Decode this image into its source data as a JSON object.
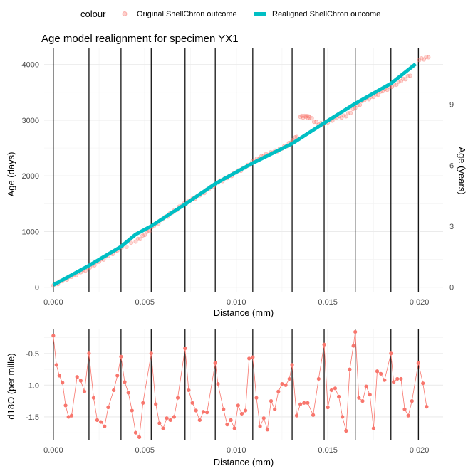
{
  "chart_data": [
    {
      "type": "scatter+line",
      "title": "Age model realignment for specimen YX1",
      "xlabel": "Distance (mm)",
      "ylabel": "Age (days)",
      "y2label": "Age (years)",
      "xlim": [
        -0.0005,
        0.0213
      ],
      "ylim": [
        -80,
        4290
      ],
      "x_ticks": [
        0.0,
        0.005,
        0.01,
        0.015,
        0.02
      ],
      "x_tick_labels": [
        "0.000",
        "0.005",
        "0.010",
        "0.015",
        "0.020"
      ],
      "y_ticks": [
        0,
        1000,
        2000,
        3000,
        4000
      ],
      "y_tick_labels": [
        "0",
        "1000",
        "2000",
        "3000",
        "4000"
      ],
      "y2_ticks": [
        0,
        1095,
        2190,
        3285
      ],
      "y2_tick_labels": [
        "0",
        "3",
        "6",
        "9"
      ],
      "legend_title": "colour",
      "legend_position": "top",
      "year_boundaries": [
        0.0,
        0.00195,
        0.0037,
        0.00535,
        0.0072,
        0.00885,
        0.0109,
        0.01305,
        0.0148,
        0.0165,
        0.01845,
        0.01995
      ],
      "series": [
        {
          "name": "Original ShellChron outcome",
          "mark": "point",
          "color": "#F8766D",
          "points": [
            [
              0.0,
              30
            ],
            [
              0.0005,
              110
            ],
            [
              0.001,
              190
            ],
            [
              0.0015,
              270
            ],
            [
              0.002,
              355
            ],
            [
              0.0025,
              460
            ],
            [
              0.003,
              560
            ],
            [
              0.0035,
              660
            ],
            [
              0.0045,
              820
            ],
            [
              0.005,
              940
            ],
            [
              0.0055,
              1100
            ],
            [
              0.006,
              1220
            ],
            [
              0.0065,
              1340
            ],
            [
              0.007,
              1460
            ],
            [
              0.0075,
              1560
            ],
            [
              0.008,
              1650
            ],
            [
              0.0085,
              1760
            ],
            [
              0.009,
              1880
            ],
            [
              0.0095,
              1960
            ],
            [
              0.01,
              2060
            ],
            [
              0.0105,
              2150
            ],
            [
              0.011,
              2270
            ],
            [
              0.0115,
              2360
            ],
            [
              0.012,
              2420
            ],
            [
              0.0125,
              2490
            ],
            [
              0.013,
              2600
            ],
            [
              0.0133,
              2700
            ],
            [
              0.0135,
              3060
            ],
            [
              0.0138,
              3060
            ],
            [
              0.014,
              3050
            ],
            [
              0.0145,
              2920
            ],
            [
              0.015,
              2960
            ],
            [
              0.0155,
              3050
            ],
            [
              0.016,
              3070
            ],
            [
              0.0165,
              3220
            ],
            [
              0.017,
              3360
            ],
            [
              0.0175,
              3420
            ],
            [
              0.018,
              3520
            ],
            [
              0.0185,
              3600
            ],
            [
              0.019,
              3700
            ],
            [
              0.0195,
              3800
            ],
            [
              0.02,
              4080
            ],
            [
              0.0205,
              4130
            ]
          ]
        },
        {
          "name": "Realigned ShellChron outcome",
          "mark": "line",
          "color": "#00BFC4",
          "points": [
            [
              0.0,
              40
            ],
            [
              0.00195,
              390
            ],
            [
              0.0037,
              730
            ],
            [
              0.0045,
              950
            ],
            [
              0.00535,
              1100
            ],
            [
              0.0072,
              1490
            ],
            [
              0.00885,
              1860
            ],
            [
              0.0109,
              2230
            ],
            [
              0.01305,
              2580
            ],
            [
              0.0148,
              2950
            ],
            [
              0.0165,
              3300
            ],
            [
              0.01845,
              3660
            ],
            [
              0.0198,
              4010
            ]
          ]
        }
      ]
    },
    {
      "type": "line",
      "title": "",
      "xlabel": "Distance (mm)",
      "ylabel": "d18O (per mille)",
      "xlim": [
        -0.0005,
        0.0213
      ],
      "ylim": [
        -1.86,
        -0.11
      ],
      "x_ticks": [
        0.0,
        0.005,
        0.01,
        0.015,
        0.02
      ],
      "x_tick_labels": [
        "0.000",
        "0.005",
        "0.010",
        "0.015",
        "0.020"
      ],
      "y_ticks": [
        -1.5,
        -1.0,
        -0.5
      ],
      "y_tick_labels": [
        "-1.5",
        "-1.0",
        "-0.5"
      ],
      "year_boundaries": [
        0.0,
        0.00195,
        0.0037,
        0.00535,
        0.0072,
        0.00885,
        0.0109,
        0.01305,
        0.0148,
        0.0165,
        0.01845,
        0.01995
      ],
      "series": [
        {
          "name": "d18O",
          "color": "#F8766D",
          "values": [
            [
              0.0,
              -0.22
            ],
            [
              0.00017,
              -0.68
            ],
            [
              0.00033,
              -0.85
            ],
            [
              0.0005,
              -0.96
            ],
            [
              0.00067,
              -1.32
            ],
            [
              0.00083,
              -1.5
            ],
            [
              0.001,
              -1.48
            ],
            [
              0.0013,
              -0.87
            ],
            [
              0.0015,
              -0.93
            ],
            [
              0.0017,
              -1.1
            ],
            [
              0.00195,
              -0.5
            ],
            [
              0.0022,
              -1.2
            ],
            [
              0.0024,
              -1.55
            ],
            [
              0.0026,
              -1.58
            ],
            [
              0.0028,
              -1.65
            ],
            [
              0.003,
              -1.35
            ],
            [
              0.0033,
              -1.08
            ],
            [
              0.0035,
              -0.85
            ],
            [
              0.0037,
              -0.55
            ],
            [
              0.0039,
              -0.95
            ],
            [
              0.0041,
              -1.12
            ],
            [
              0.0043,
              -1.4
            ],
            [
              0.0045,
              -1.75
            ],
            [
              0.0047,
              -1.82
            ],
            [
              0.0049,
              -1.28
            ],
            [
              0.00535,
              -0.5
            ],
            [
              0.0056,
              -1.3
            ],
            [
              0.0058,
              -1.6
            ],
            [
              0.006,
              -1.68
            ],
            [
              0.0062,
              -1.52
            ],
            [
              0.0064,
              -1.55
            ],
            [
              0.0066,
              -1.5
            ],
            [
              0.0068,
              -1.2
            ],
            [
              0.0072,
              -0.42
            ],
            [
              0.0074,
              -1.08
            ],
            [
              0.0076,
              -1.28
            ],
            [
              0.0078,
              -1.4
            ],
            [
              0.008,
              -1.55
            ],
            [
              0.0082,
              -1.42
            ],
            [
              0.0084,
              -1.43
            ],
            [
              0.00885,
              -0.65
            ],
            [
              0.009,
              -0.98
            ],
            [
              0.0093,
              -1.38
            ],
            [
              0.0095,
              -1.62
            ],
            [
              0.0097,
              -1.55
            ],
            [
              0.0099,
              -1.68
            ],
            [
              0.0101,
              -1.32
            ],
            [
              0.0103,
              -1.45
            ],
            [
              0.0105,
              -1.4
            ],
            [
              0.0107,
              -0.58
            ],
            [
              0.0109,
              -0.56
            ],
            [
              0.0111,
              -1.2
            ],
            [
              0.0113,
              -1.65
            ],
            [
              0.0115,
              -1.52
            ],
            [
              0.0117,
              -1.7
            ],
            [
              0.0119,
              -1.25
            ],
            [
              0.0121,
              -1.38
            ],
            [
              0.0123,
              -1.1
            ],
            [
              0.0125,
              -0.98
            ],
            [
              0.0127,
              -1.0
            ],
            [
              0.0129,
              -0.9
            ],
            [
              0.01305,
              -0.68
            ],
            [
              0.0133,
              -1.48
            ],
            [
              0.0135,
              -1.3
            ],
            [
              0.0137,
              -1.28
            ],
            [
              0.0139,
              -1.28
            ],
            [
              0.0142,
              -1.47
            ],
            [
              0.0145,
              -0.9
            ],
            [
              0.0148,
              -0.36
            ],
            [
              0.015,
              -1.35
            ],
            [
              0.0152,
              -1.08
            ],
            [
              0.0154,
              -1.05
            ],
            [
              0.0156,
              -1.18
            ],
            [
              0.0158,
              -1.5
            ],
            [
              0.016,
              -1.72
            ],
            [
              0.0162,
              -0.75
            ],
            [
              0.0164,
              -0.38
            ],
            [
              0.0165,
              -0.16
            ],
            [
              0.0167,
              -1.2
            ],
            [
              0.0169,
              -1.25
            ],
            [
              0.0171,
              -1.02
            ],
            [
              0.0173,
              -1.15
            ],
            [
              0.0175,
              -1.68
            ],
            [
              0.0177,
              -0.78
            ],
            [
              0.0179,
              -0.82
            ],
            [
              0.0181,
              -0.92
            ],
            [
              0.01845,
              -0.5
            ],
            [
              0.0186,
              -0.95
            ],
            [
              0.0188,
              -0.9
            ],
            [
              0.019,
              -0.9
            ],
            [
              0.0192,
              -1.38
            ],
            [
              0.0194,
              -1.48
            ],
            [
              0.0196,
              -1.25
            ],
            [
              0.01995,
              -0.65
            ],
            [
              0.0202,
              -0.97
            ],
            [
              0.0204,
              -1.34
            ]
          ]
        }
      ]
    }
  ]
}
